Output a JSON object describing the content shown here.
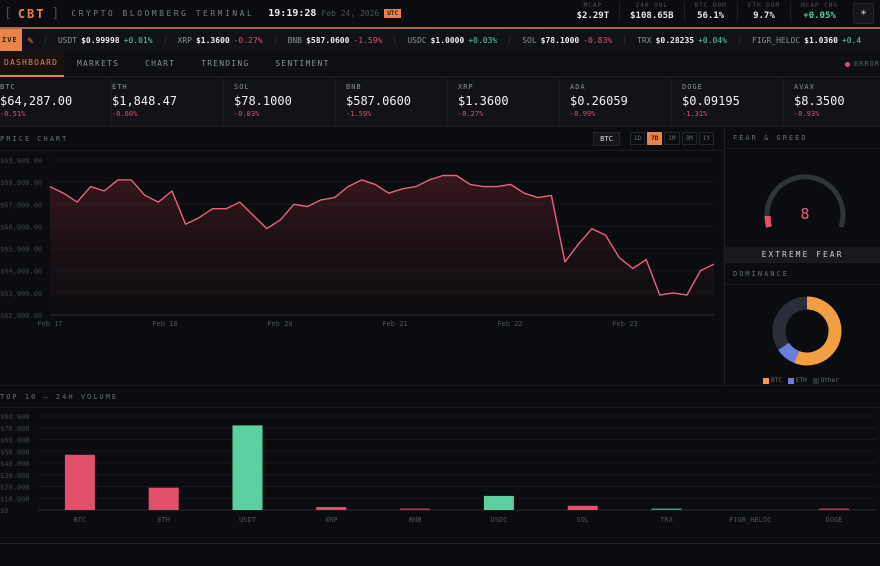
{
  "header": {
    "bracket_left": "[",
    "logo": "CBT",
    "bracket_right": "]",
    "title": "CRYPTO BLOOMBERG TERMINAL",
    "time": "19:19:28",
    "date": "Feb 24, 2026",
    "tz": "UTC",
    "stats": [
      {
        "label": "MCAP",
        "value": "$2.29T",
        "tone": ""
      },
      {
        "label": "24H VOL",
        "value": "$108.65B",
        "tone": ""
      },
      {
        "label": "BTC DOM",
        "value": "56.1%",
        "tone": ""
      },
      {
        "label": "ETH DOM",
        "value": "9.7%",
        "tone": ""
      },
      {
        "label": "MCAP CHG",
        "value": "+0.05%",
        "tone": "pos"
      }
    ],
    "theme_icon": "☀"
  },
  "ticker": {
    "live_label": "IVE",
    "lead_fragment": "%",
    "items": [
      {
        "sym": "USDT",
        "price": "$0.99998",
        "chg": "+0.01%",
        "dir": "pos"
      },
      {
        "sym": "XRP",
        "price": "$1.3600",
        "chg": "-0.27%",
        "dir": "neg"
      },
      {
        "sym": "BNB",
        "price": "$587.0600",
        "chg": "-1.59%",
        "dir": "neg"
      },
      {
        "sym": "USDC",
        "price": "$1.0000",
        "chg": "+0.03%",
        "dir": "pos"
      },
      {
        "sym": "SOL",
        "price": "$78.1000",
        "chg": "-0.83%",
        "dir": "neg"
      },
      {
        "sym": "TRX",
        "price": "$0.28235",
        "chg": "+0.04%",
        "dir": "pos"
      },
      {
        "sym": "FIGR_HELOC",
        "price": "$1.0360",
        "chg": "+0.4",
        "dir": "pos"
      }
    ]
  },
  "nav": {
    "tabs": [
      "DASHBOARD",
      "MARKETS",
      "CHART",
      "TRENDING",
      "SENTIMENT"
    ],
    "active": 0,
    "status": "ERROR"
  },
  "cards": [
    {
      "sym": "BTC",
      "price": "$64,287.00",
      "chg": "-0.51%"
    },
    {
      "sym": "ETH",
      "price": "$1,848.47",
      "chg": "-0.60%"
    },
    {
      "sym": "SOL",
      "price": "$78.1000",
      "chg": "-0.83%"
    },
    {
      "sym": "BNB",
      "price": "$587.0600",
      "chg": "-1.59%"
    },
    {
      "sym": "XRP",
      "price": "$1.3600",
      "chg": "-0.27%"
    },
    {
      "sym": "ADA",
      "price": "$0.26059",
      "chg": "-0.99%"
    },
    {
      "sym": "DOGE",
      "price": "$0.09195",
      "chg": "-1.31%"
    },
    {
      "sym": "AVAX",
      "price": "$8.3500",
      "chg": "-0.93%"
    }
  ],
  "price_chart": {
    "title": "PRICE CHART",
    "asset": "BTC",
    "ranges": [
      "1D",
      "7D",
      "1M",
      "3M",
      "1Y"
    ],
    "active_range": "7D"
  },
  "fear_greed": {
    "title": "FEAR & GREED",
    "value": "8",
    "label": "EXTREME FEAR"
  },
  "dominance": {
    "title": "DOMINANCE",
    "legend": [
      "BTC",
      "ETH",
      "Other"
    ]
  },
  "volume": {
    "title": "TOP 10 — 24H VOLUME"
  },
  "colors": {
    "accent": "#e8834a",
    "positive": "#5ecf9e",
    "negative": "#e0506a",
    "line": "#e8647a",
    "btc": "#f0a040",
    "eth": "#6c7ce0",
    "other": "#2a2e38"
  },
  "chart_data": [
    {
      "type": "area",
      "title": "PRICE CHART",
      "series_name": "BTC 7D",
      "x": [
        "Feb 17",
        "Feb 18",
        "Feb 20",
        "Feb 21",
        "Feb 22",
        "Feb 23"
      ],
      "yticks": [
        "$62,000.00",
        "$63,000.00",
        "$64,000.00",
        "$65,000.00",
        "$66,000.00",
        "$67,000.00",
        "$68,000.00",
        "$69,000.00"
      ],
      "ylim": [
        62000,
        69000
      ],
      "values": [
        67800,
        67500,
        67100,
        67800,
        67600,
        68100,
        68100,
        67400,
        67100,
        67600,
        66100,
        66400,
        66800,
        66800,
        67100,
        66500,
        65900,
        66300,
        67000,
        66900,
        67200,
        67300,
        67800,
        68100,
        67900,
        67500,
        67700,
        67800,
        68100,
        68300,
        68300,
        67900,
        67800,
        67800,
        67900,
        67500,
        67300,
        67400,
        64400,
        65200,
        65900,
        65600,
        64600,
        64100,
        64500,
        62900,
        63000,
        62900,
        64000,
        64300
      ],
      "grid": true
    },
    {
      "type": "bar",
      "title": "TOP 10 — 24H VOLUME",
      "categories": [
        "BTC",
        "ETH",
        "USDT",
        "XRP",
        "BNB",
        "USDC",
        "SOL",
        "TRX",
        "FIGR_HELOC",
        "DOGE"
      ],
      "values": [
        47,
        19,
        72,
        2.5,
        1.2,
        12,
        3.6,
        0.8,
        0,
        1
      ],
      "unit": "B",
      "yticks": [
        "$0",
        "$10.00B",
        "$20.00B",
        "$30.00B",
        "$40.00B",
        "$50.00B",
        "$60.00B",
        "$70.00B",
        "$80.00B"
      ],
      "ylim": [
        0,
        80
      ],
      "colors_by_direction": [
        "neg",
        "neg",
        "pos",
        "neg",
        "neg",
        "pos",
        "neg",
        "pos",
        "pos",
        "neg"
      ]
    },
    {
      "type": "pie",
      "title": "DOMINANCE",
      "categories": [
        "BTC",
        "ETH",
        "Other"
      ],
      "values": [
        56.1,
        9.7,
        34.2
      ]
    }
  ]
}
